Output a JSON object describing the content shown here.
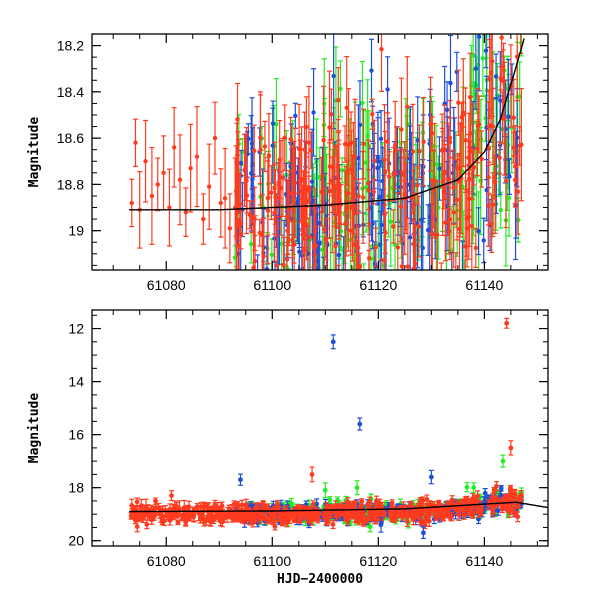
{
  "chart_data": [
    {
      "type": "scatter",
      "panel": "top",
      "title": "",
      "xlabel": "",
      "ylabel": "Magnitude",
      "xlim": [
        61066,
        61152
      ],
      "ylim": [
        19.17,
        18.15
      ],
      "y_inverted": true,
      "x_ticks": [
        61080,
        61100,
        61120,
        61140
      ],
      "x_tick_labels": [
        "61080",
        "61100",
        "61120",
        "61140"
      ],
      "y_ticks": [
        18.2,
        18.4,
        18.6,
        18.8,
        19.0
      ],
      "y_tick_labels": [
        "18.2",
        "18.4",
        "18.6",
        "18.8",
        "19"
      ],
      "series": [
        {
          "name": "red",
          "color": "#ff3b1f",
          "x_range": [
            61073,
            61147
          ],
          "sample_points": [
            [
              61073.5,
              18.88
            ],
            [
              61074.2,
              18.62
            ],
            [
              61075.0,
              18.91
            ],
            [
              61076.1,
              18.7
            ],
            [
              61077.3,
              18.85
            ],
            [
              61078.4,
              18.8
            ],
            [
              61079.5,
              18.75
            ],
            [
              61080.6,
              18.9
            ],
            [
              61081.5,
              18.64
            ],
            [
              61082.6,
              18.78
            ],
            [
              61083.7,
              18.92
            ],
            [
              61084.6,
              18.73
            ],
            [
              61085.8,
              18.68
            ],
            [
              61087.0,
              18.95
            ],
            [
              61088.1,
              18.81
            ],
            [
              61089.2,
              18.6
            ],
            [
              61090.3,
              18.88
            ],
            [
              61091.1,
              18.86
            ],
            [
              61092.0,
              18.99
            ],
            [
              61093.0,
              18.9
            ]
          ]
        },
        {
          "name": "green",
          "color": "#22ee22",
          "x_range": [
            61095,
            61147
          ],
          "sample_points": []
        },
        {
          "name": "blue",
          "color": "#1e4fd8",
          "x_range": [
            61093,
            61147
          ],
          "sample_points": []
        }
      ],
      "model_curve": {
        "color": "#000000",
        "description": "flat near 18.91 rising steeply after 61140",
        "points": [
          [
            61073,
            18.91
          ],
          [
            61090,
            18.91
          ],
          [
            61110,
            18.89
          ],
          [
            61125,
            18.86
          ],
          [
            61135,
            18.78
          ],
          [
            61140,
            18.66
          ],
          [
            61143,
            18.52
          ],
          [
            61145.5,
            18.33
          ],
          [
            61147.5,
            18.17
          ]
        ]
      }
    },
    {
      "type": "scatter",
      "panel": "bottom",
      "title": "",
      "xlabel": "HJD−2400000",
      "ylabel": "Magnitude",
      "xlim": [
        61066,
        61152
      ],
      "ylim": [
        20.2,
        11.3
      ],
      "y_inverted": true,
      "x_ticks": [
        61080,
        61100,
        61120,
        61140
      ],
      "x_tick_labels": [
        "61080",
        "61100",
        "61120",
        "61140"
      ],
      "y_ticks": [
        12,
        14,
        16,
        18,
        20
      ],
      "y_tick_labels": [
        "12",
        "14",
        "16",
        "18",
        "20"
      ],
      "series": [
        {
          "name": "red",
          "color": "#ff3b1f",
          "x_range": [
            61073,
            61147
          ],
          "outliers": [
            [
              61144.2,
              11.8
            ],
            [
              61145.0,
              16.5
            ],
            [
              61107.5,
              17.5
            ],
            [
              61081.0,
              18.3
            ]
          ]
        },
        {
          "name": "green",
          "color": "#22ee22",
          "x_range": [
            61095,
            61147
          ],
          "outliers": [
            [
              61143.5,
              17.0
            ],
            [
              61138.0,
              18.0
            ],
            [
              61116.0,
              18.0
            ],
            [
              61110.0,
              18.1
            ]
          ]
        },
        {
          "name": "blue",
          "color": "#1e4fd8",
          "x_range": [
            61093,
            61147
          ],
          "outliers": [
            [
              61111.5,
              12.5
            ],
            [
              61116.5,
              15.6
            ],
            [
              61094.0,
              17.7
            ],
            [
              61130.0,
              17.6
            ],
            [
              61128.5,
              19.7
            ],
            [
              61120.5,
              19.4
            ]
          ]
        }
      ],
      "model_curve": {
        "color": "#000000",
        "description": "flat near 18.9 rising slightly toward 18.6 and back down past 61147",
        "points": [
          [
            61073,
            18.9
          ],
          [
            61100,
            18.88
          ],
          [
            61125,
            18.8
          ],
          [
            61140,
            18.62
          ],
          [
            61146,
            18.55
          ],
          [
            61152,
            18.75
          ]
        ]
      }
    }
  ]
}
